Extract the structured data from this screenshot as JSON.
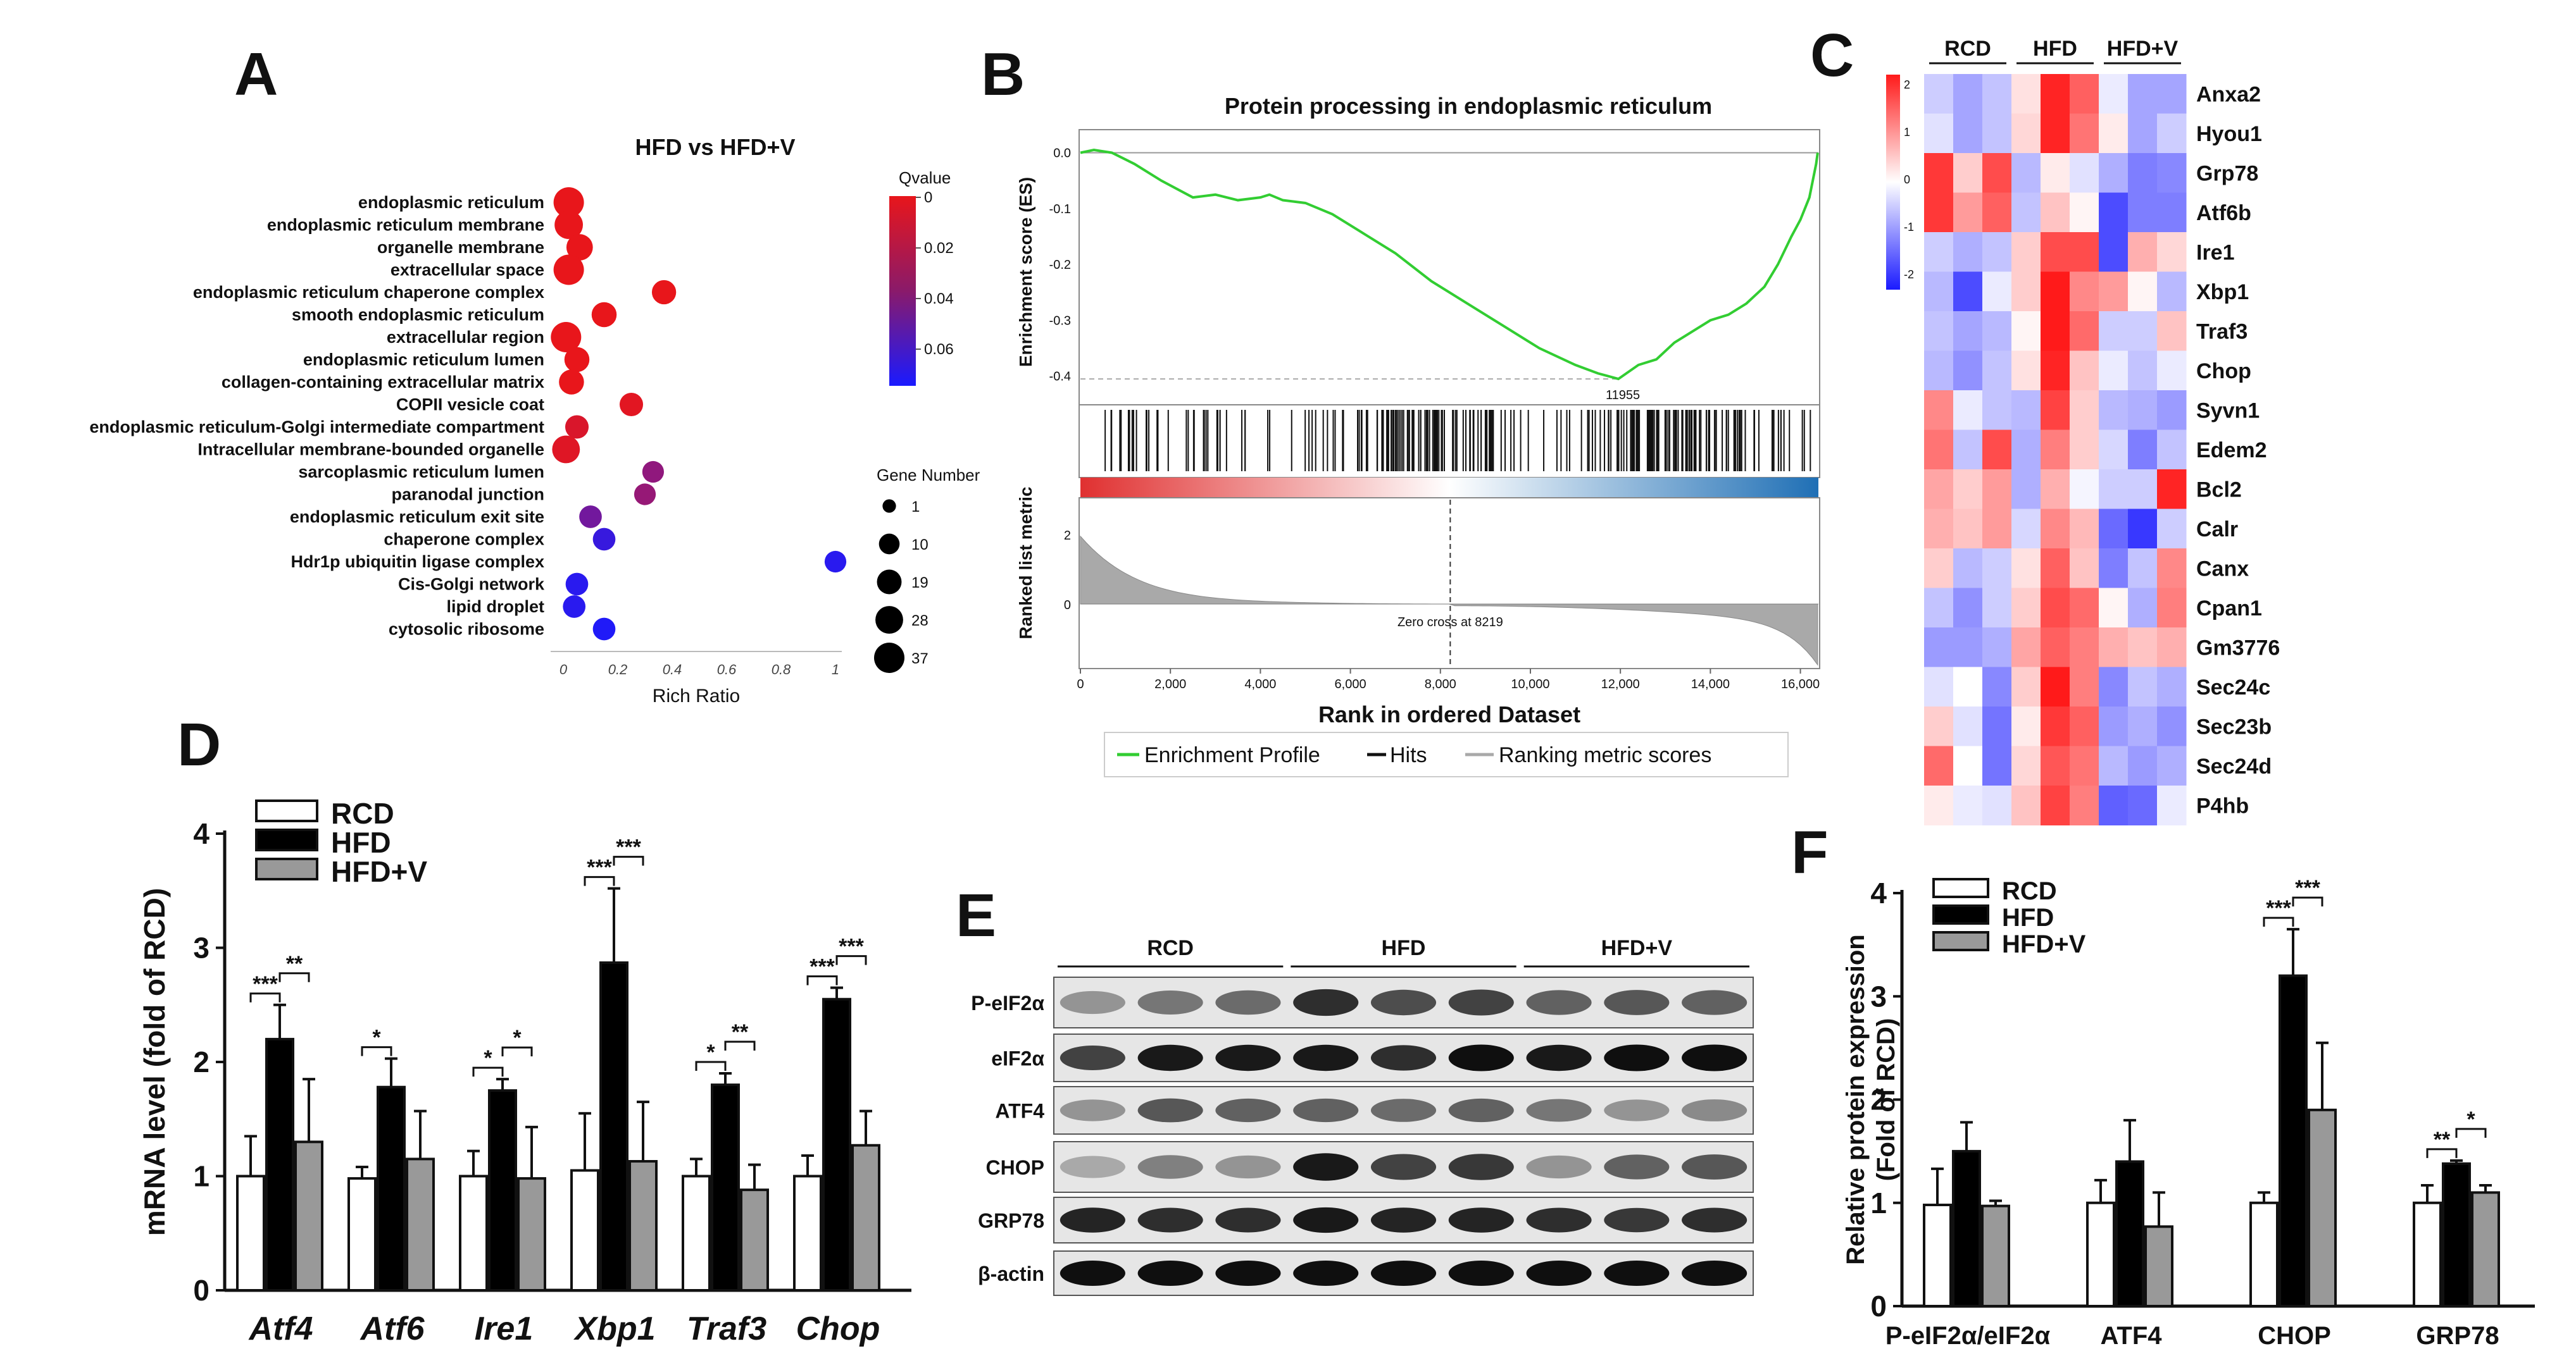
{
  "panels": {
    "A": {
      "letter": "A",
      "chart_data": {
        "type": "scatter",
        "title": "HFD vs HFD+V",
        "xlabel": "Rich Ratio",
        "x_ticks": [
          "0",
          "0.2",
          "0.4",
          "0.6",
          "0.8",
          "1"
        ],
        "xlim": [
          0,
          1.05
        ],
        "terms": [
          {
            "term": "endoplasmic reticulum",
            "rich_ratio": 0.02,
            "qvalue": 0.0,
            "gene_number": 37
          },
          {
            "term": "endoplasmic reticulum membrane",
            "rich_ratio": 0.02,
            "qvalue": 0.0,
            "gene_number": 30
          },
          {
            "term": "organelle membrane",
            "rich_ratio": 0.06,
            "qvalue": 0.0,
            "gene_number": 24
          },
          {
            "term": "extracellular space",
            "rich_ratio": 0.02,
            "qvalue": 0.0,
            "gene_number": 37
          },
          {
            "term": "endoplasmic reticulum chaperone complex",
            "rich_ratio": 0.37,
            "qvalue": 0.0,
            "gene_number": 18
          },
          {
            "term": "smooth endoplasmic reticulum",
            "rich_ratio": 0.15,
            "qvalue": 0.0,
            "gene_number": 20
          },
          {
            "term": "extracellular region",
            "rich_ratio": 0.01,
            "qvalue": 0.0,
            "gene_number": 37
          },
          {
            "term": "endoplasmic reticulum lumen",
            "rich_ratio": 0.05,
            "qvalue": 0.0,
            "gene_number": 20
          },
          {
            "term": "collagen-containing extracellular matrix",
            "rich_ratio": 0.03,
            "qvalue": 0.0,
            "gene_number": 20
          },
          {
            "term": "COPII vesicle coat",
            "rich_ratio": 0.25,
            "qvalue": 0.002,
            "gene_number": 16
          },
          {
            "term": "endoplasmic reticulum-Golgi intermediate compartment",
            "rich_ratio": 0.05,
            "qvalue": 0.005,
            "gene_number": 16
          },
          {
            "term": "Intracellular membrane-bounded organelle",
            "rich_ratio": 0.01,
            "qvalue": 0.003,
            "gene_number": 28
          },
          {
            "term": "sarcoplasmic reticulum lumen",
            "rich_ratio": 0.33,
            "qvalue": 0.03,
            "gene_number": 12
          },
          {
            "term": "paranodal junction",
            "rich_ratio": 0.3,
            "qvalue": 0.028,
            "gene_number": 12
          },
          {
            "term": "endoplasmic reticulum exit site",
            "rich_ratio": 0.1,
            "qvalue": 0.04,
            "gene_number": 14
          },
          {
            "term": "chaperone complex",
            "rich_ratio": 0.15,
            "qvalue": 0.06,
            "gene_number": 14
          },
          {
            "term": "Hdr1p ubiquitin ligase complex",
            "rich_ratio": 1.0,
            "qvalue": 0.065,
            "gene_number": 12
          },
          {
            "term": "Cis-Golgi network",
            "rich_ratio": 0.05,
            "qvalue": 0.065,
            "gene_number": 14
          },
          {
            "term": "lipid droplet",
            "rich_ratio": 0.04,
            "qvalue": 0.065,
            "gene_number": 14
          },
          {
            "term": "cytosolic ribosome",
            "rich_ratio": 0.15,
            "qvalue": 0.068,
            "gene_number": 14
          }
        ],
        "qvalue_legend": {
          "title": "Qvalue",
          "ticks": [
            "0",
            "0.02",
            "0.04",
            "0.06"
          ],
          "color_low": "#e8161b",
          "color_high": "#1a1aff"
        },
        "size_legend": {
          "title": "Gene Number",
          "labels": [
            "1",
            "10",
            "19",
            "28",
            "37"
          ],
          "values": [
            1,
            10,
            19,
            28,
            37
          ]
        }
      }
    },
    "B": {
      "letter": "B",
      "chart_data": {
        "type": "line",
        "title": "Protein processing in endoplasmic reticulum",
        "ylabel_top": "Enrichment score (ES)",
        "ylabel_bottom": "Ranked list metric",
        "xlabel": "Rank in ordered Dataset",
        "x_ticks": [
          "0",
          "2,000",
          "4,000",
          "6,000",
          "8,000",
          "10,000",
          "12,000",
          "14,000",
          "16,000"
        ],
        "x_tick_values": [
          0,
          2000,
          4000,
          6000,
          8000,
          10000,
          12000,
          14000,
          16000
        ],
        "es_ticks": [
          "0.0",
          "-0.1",
          "-0.2",
          "-0.3",
          "-0.4"
        ],
        "es_tick_values": [
          0,
          -0.1,
          -0.2,
          -0.3,
          -0.4
        ],
        "metric_ticks": [
          "2",
          "0"
        ],
        "xlim": [
          0,
          16400
        ],
        "es_ylim": [
          -0.44,
          0.03
        ],
        "es_curve": {
          "x": [
            0,
            300,
            700,
            1200,
            1800,
            2500,
            3000,
            3500,
            4000,
            4200,
            4500,
            5000,
            5600,
            6200,
            7000,
            7800,
            8600,
            9400,
            10200,
            11000,
            11500,
            11955,
            12400,
            12800,
            13200,
            13600,
            14000,
            14400,
            14800,
            15200,
            15500,
            15800,
            16000,
            16200,
            16350,
            16384
          ],
          "y": [
            0,
            0.005,
            0,
            -0.02,
            -0.05,
            -0.08,
            -0.075,
            -0.085,
            -0.08,
            -0.075,
            -0.085,
            -0.09,
            -0.11,
            -0.14,
            -0.18,
            -0.23,
            -0.27,
            -0.31,
            -0.35,
            -0.38,
            -0.395,
            -0.405,
            -0.38,
            -0.37,
            -0.34,
            -0.32,
            -0.3,
            -0.29,
            -0.27,
            -0.24,
            -0.2,
            -0.15,
            -0.12,
            -0.08,
            -0.02,
            0.0
          ]
        },
        "min_rank_label": "11955",
        "zero_cross_label": "Zero cross at 8219",
        "zero_cross_rank": 8219,
        "legend": [
          "Enrichment Profile",
          "Hits",
          "Ranking metric scores"
        ],
        "colors": {
          "profile": "#32cd32",
          "hits": "#111111",
          "metric": "#a9a9a9"
        }
      }
    },
    "C": {
      "letter": "C",
      "chart_data": {
        "type": "heatmap",
        "groups": [
          "RCD",
          "HFD",
          "HFD+V"
        ],
        "genes": [
          "Anxa2",
          "Hyou1",
          "Grp78",
          "Atf6b",
          "Ire1",
          "Xbp1",
          "Traf3",
          "Chop",
          "Syvn1",
          "Edem2",
          "Bcl2",
          "Calr",
          "Canx",
          "Cpan1",
          "Gm3776",
          "Sec24c",
          "Sec23b",
          "Sec24d",
          "P4hb"
        ],
        "scale_ticks": [
          "2",
          "1",
          "0",
          "-1",
          "-2"
        ],
        "scale_range": [
          -2,
          2
        ],
        "values": [
          [
            -0.5,
            -0.9,
            -0.6,
            0.3,
            2.2,
            1.6,
            -0.2,
            -0.9,
            -0.9
          ],
          [
            -0.3,
            -0.9,
            -0.6,
            0.4,
            2.2,
            1.4,
            0.2,
            -0.9,
            -0.5
          ],
          [
            2.0,
            0.5,
            1.8,
            -0.7,
            0.2,
            -0.3,
            -0.8,
            -1.3,
            -1.2
          ],
          [
            2.0,
            1.0,
            1.6,
            -0.6,
            0.6,
            0.1,
            -1.8,
            -1.3,
            -1.3
          ],
          [
            -0.5,
            -0.8,
            -0.6,
            0.5,
            1.8,
            1.8,
            -1.8,
            0.8,
            0.4
          ],
          [
            -0.7,
            -1.8,
            -0.2,
            0.5,
            2.3,
            1.2,
            1.0,
            0.1,
            -0.7
          ],
          [
            -0.6,
            -0.9,
            -0.7,
            0.1,
            2.3,
            1.5,
            -0.5,
            -0.5,
            0.6
          ],
          [
            -0.7,
            -1.1,
            -0.6,
            0.3,
            2.2,
            0.6,
            -0.2,
            -0.6,
            -0.2
          ],
          [
            1.2,
            -0.2,
            -0.6,
            -0.7,
            1.9,
            0.5,
            -0.7,
            -0.8,
            -1.0
          ],
          [
            1.4,
            -0.6,
            1.8,
            -0.8,
            1.3,
            0.5,
            -0.4,
            -1.3,
            -0.6
          ],
          [
            0.9,
            0.5,
            1.0,
            -0.8,
            0.8,
            -0.1,
            -0.5,
            -0.5,
            2.2
          ],
          [
            0.8,
            0.6,
            1.0,
            -0.4,
            1.2,
            0.7,
            -1.5,
            -2.0,
            -0.5
          ],
          [
            0.5,
            -0.7,
            -0.5,
            0.3,
            1.6,
            0.6,
            -1.3,
            -0.6,
            1.2
          ],
          [
            -0.6,
            -1.1,
            -0.5,
            0.5,
            1.8,
            1.5,
            0.1,
            -0.8,
            1.3
          ],
          [
            -1.0,
            -1.0,
            -0.8,
            0.9,
            1.6,
            1.3,
            0.8,
            0.6,
            0.8
          ],
          [
            -0.3,
            0.0,
            -1.2,
            0.5,
            2.3,
            1.3,
            -1.2,
            -0.6,
            -0.8
          ],
          [
            0.5,
            -0.3,
            -1.4,
            0.2,
            2.0,
            1.6,
            -1.0,
            -0.8,
            -1.1
          ],
          [
            1.5,
            0.0,
            -1.4,
            0.4,
            1.7,
            1.4,
            -0.7,
            -1.0,
            -0.8
          ],
          [
            0.2,
            -0.2,
            -0.3,
            0.6,
            1.9,
            1.3,
            -1.6,
            -1.5,
            -0.2
          ]
        ]
      }
    },
    "D": {
      "letter": "D",
      "chart_data": {
        "type": "bar",
        "ylabel": "mRNA level (fold of RCD)",
        "ylim": [
          0,
          4
        ],
        "y_ticks": [
          "0",
          "1",
          "2",
          "3",
          "4"
        ],
        "categories": [
          "Atf4",
          "Atf6",
          "Ire1",
          "Xbp1",
          "Traf3",
          "Chop"
        ],
        "series": [
          {
            "name": "RCD",
            "color": "#ffffff",
            "values": [
              1.0,
              0.98,
              1.0,
              1.05,
              1.0,
              1.0
            ],
            "errors": [
              0.35,
              0.1,
              0.22,
              0.5,
              0.15,
              0.18
            ]
          },
          {
            "name": "HFD",
            "color": "#000000",
            "values": [
              2.2,
              1.78,
              1.75,
              2.87,
              1.8,
              2.55
            ],
            "errors": [
              0.3,
              0.25,
              0.1,
              0.65,
              0.1,
              0.1
            ]
          },
          {
            "name": "HFD+V",
            "color": "#999999",
            "values": [
              1.3,
              1.15,
              0.98,
              1.13,
              0.88,
              1.27
            ],
            "errors": [
              0.55,
              0.42,
              0.45,
              0.52,
              0.22,
              0.3
            ]
          }
        ],
        "significance": [
          {
            "category": "Atf4",
            "pair": "RCD-HFD",
            "label": "***"
          },
          {
            "category": "Atf4",
            "pair": "HFD-HFD+V",
            "label": "**"
          },
          {
            "category": "Atf6",
            "pair": "RCD-HFD",
            "label": "*"
          },
          {
            "category": "Ire1",
            "pair": "RCD-HFD",
            "label": "*"
          },
          {
            "category": "Ire1",
            "pair": "HFD-HFD+V",
            "label": "*"
          },
          {
            "category": "Xbp1",
            "pair": "RCD-HFD",
            "label": "***"
          },
          {
            "category": "Xbp1",
            "pair": "HFD-HFD+V",
            "label": "***"
          },
          {
            "category": "Traf3",
            "pair": "RCD-HFD",
            "label": "*"
          },
          {
            "category": "Traf3",
            "pair": "HFD-HFD+V",
            "label": "**"
          },
          {
            "category": "Chop",
            "pair": "RCD-HFD",
            "label": "***"
          },
          {
            "category": "Chop",
            "pair": "HFD-HFD+V",
            "label": "***"
          }
        ]
      }
    },
    "E": {
      "letter": "E",
      "groups": [
        "RCD",
        "HFD",
        "HFD+V"
      ],
      "rows": [
        {
          "label": "P-eIF2α",
          "intensity": [
            0.35,
            0.5,
            0.55,
            0.85,
            0.7,
            0.75,
            0.6,
            0.65,
            0.6
          ]
        },
        {
          "label": "eIF2α",
          "intensity": [
            0.75,
            0.95,
            0.95,
            0.95,
            0.85,
            1.0,
            0.95,
            1.0,
            1.0
          ]
        },
        {
          "label": "ATF4",
          "intensity": [
            0.35,
            0.65,
            0.6,
            0.6,
            0.55,
            0.6,
            0.5,
            0.35,
            0.4
          ]
        },
        {
          "label": "CHOP",
          "intensity": [
            0.25,
            0.45,
            0.35,
            0.95,
            0.75,
            0.8,
            0.35,
            0.6,
            0.65
          ]
        },
        {
          "label": "GRP78",
          "intensity": [
            0.9,
            0.85,
            0.85,
            0.95,
            0.9,
            0.9,
            0.85,
            0.8,
            0.85
          ]
        },
        {
          "label": "β-actin",
          "intensity": [
            1.0,
            1.0,
            1.0,
            1.0,
            1.0,
            1.0,
            1.0,
            1.0,
            1.0
          ]
        }
      ]
    },
    "F": {
      "letter": "F",
      "chart_data": {
        "type": "bar",
        "ylabel_lines": [
          "Relative protein expression",
          "(Fold of RCD)"
        ],
        "ylim": [
          0,
          4
        ],
        "y_ticks": [
          "0",
          "1",
          "2",
          "3",
          "4"
        ],
        "categories": [
          "P-eIF2α/eIF2α",
          "ATF4",
          "CHOP",
          "GRP78"
        ],
        "series": [
          {
            "name": "RCD",
            "color": "#ffffff",
            "values": [
              0.98,
              1.0,
              1.0,
              1.0
            ],
            "errors": [
              0.35,
              0.22,
              0.1,
              0.17
            ]
          },
          {
            "name": "HFD",
            "color": "#000000",
            "values": [
              1.5,
              1.4,
              3.2,
              1.38
            ],
            "errors": [
              0.28,
              0.4,
              0.45,
              0.03
            ]
          },
          {
            "name": "HFD+V",
            "color": "#999999",
            "values": [
              0.97,
              0.77,
              1.9,
              1.1
            ],
            "errors": [
              0.05,
              0.33,
              0.65,
              0.07
            ]
          }
        ],
        "significance": [
          {
            "category": "CHOP",
            "pair": "RCD-HFD",
            "label": "***"
          },
          {
            "category": "CHOP",
            "pair": "HFD-HFD+V",
            "label": "***"
          },
          {
            "category": "GRP78",
            "pair": "RCD-HFD",
            "label": "**"
          },
          {
            "category": "GRP78",
            "pair": "HFD-HFD+V",
            "label": "*"
          }
        ]
      }
    }
  }
}
